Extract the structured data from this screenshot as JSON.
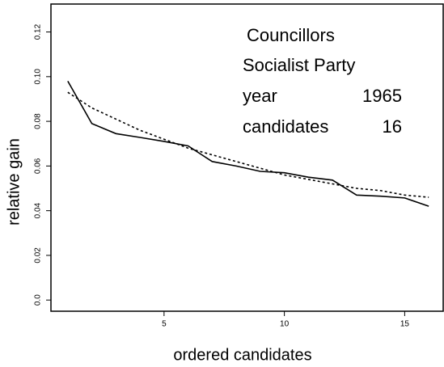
{
  "chart_data": {
    "type": "line",
    "xlabel": "ordered candidates",
    "ylabel": "relative gain",
    "annotations": [
      "Councillors",
      "Socialist Party",
      "year",
      "1965",
      "candidates",
      "16"
    ],
    "x": [
      1,
      2,
      3,
      4,
      5,
      6,
      7,
      8,
      9,
      10,
      11,
      12,
      13,
      14,
      15,
      16
    ],
    "series": [
      {
        "color": "#000000",
        "style": "solid",
        "values": [
          0.098,
          0.079,
          0.0745,
          0.0728,
          0.071,
          0.069,
          0.062,
          0.06,
          0.0576,
          0.057,
          0.055,
          0.0537,
          0.047,
          0.0465,
          0.0457,
          0.042
        ]
      },
      {
        "color": "#000000",
        "style": "dotted",
        "values": [
          0.093,
          0.086,
          0.081,
          0.076,
          0.072,
          0.068,
          0.065,
          0.062,
          0.059,
          0.056,
          0.054,
          0.052,
          0.05,
          0.049,
          0.047,
          0.046
        ]
      }
    ],
    "xlim": [
      0.3,
      16.6
    ],
    "ylim": [
      -0.005,
      0.1325
    ],
    "xticks": [
      5,
      10,
      15
    ],
    "yticks": [
      {
        "value": 0,
        "label": "0.0"
      },
      0.02,
      0.04,
      0.06,
      0.08,
      {
        "value": 0.1,
        "label": "0.10"
      },
      0.12
    ]
  }
}
